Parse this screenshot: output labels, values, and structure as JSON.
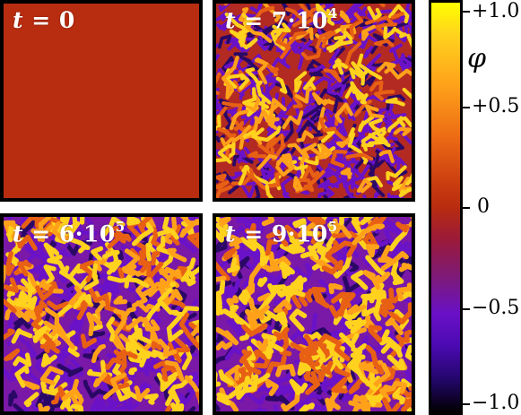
{
  "panels": [
    {
      "id": "p0",
      "t_base": "0",
      "t_exp": ""
    },
    {
      "id": "p1",
      "t_base": "7·10",
      "t_exp": "4"
    },
    {
      "id": "p2",
      "t_base": "6·10",
      "t_exp": "5"
    },
    {
      "id": "p3",
      "t_base": "9·10",
      "t_exp": "5"
    }
  ],
  "colorbar": {
    "label": "φ",
    "ticks": [
      "+1.0",
      "+0.5",
      "0",
      "−0.5",
      "−1.0"
    ],
    "range": [
      -1.0,
      1.0
    ],
    "colors": {
      "high": "#ffff00",
      "mid": "#b82c10",
      "low": "#000000",
      "purple": "#6a10c8"
    }
  },
  "labels": {
    "t_prefix": "t = "
  }
}
